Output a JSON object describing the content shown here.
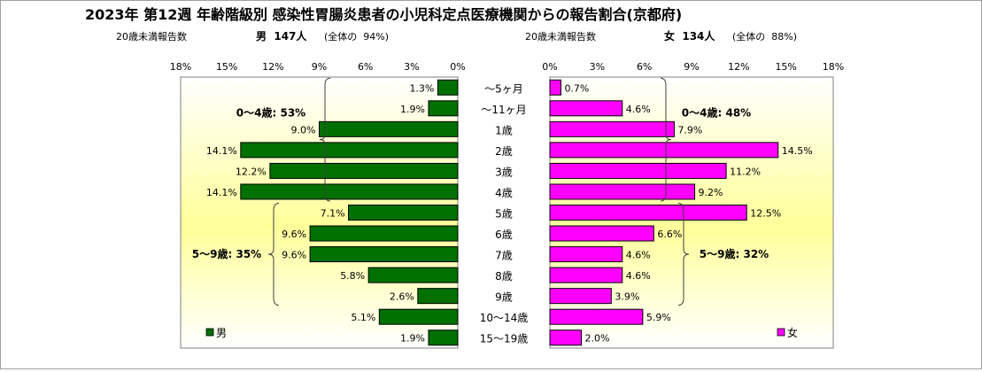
{
  "chart_data": {
    "type": "bar",
    "title": "2023年 第12週  年齢階級別 感染性胃腸炎患者の小児科定点医療機関からの報告割合(京都府)",
    "categories": [
      "～5ヶ月",
      "～11ヶ月",
      "1歳",
      "2歳",
      "3歳",
      "4歳",
      "5歳",
      "6歳",
      "7歳",
      "8歳",
      "9歳",
      "10～14歳",
      "15～19歳"
    ],
    "male": {
      "name": "男",
      "header_label": "20歳未満報告数",
      "header_count": "男  147人",
      "header_share": "(全体の  94%)",
      "values": [
        1.3,
        1.9,
        9.0,
        14.1,
        12.2,
        14.1,
        7.1,
        9.6,
        9.6,
        5.8,
        2.6,
        5.1,
        1.9
      ],
      "value_labels": [
        "1.3%",
        "1.9%",
        "9.0%",
        "14.1%",
        "12.2%",
        "14.1%",
        "7.1%",
        "9.6%",
        "9.6%",
        "5.8%",
        "2.6%",
        "5.1%",
        "1.9%"
      ],
      "xlim": [
        0,
        18
      ],
      "ticks": [
        "18%",
        "15%",
        "12%",
        "9%",
        "6%",
        "3%",
        "0%"
      ],
      "brackets": [
        {
          "label": "0～4歳: 53%",
          "from": 0,
          "to": 5
        },
        {
          "label": "5～9歳: 35%",
          "from": 6,
          "to": 10
        }
      ]
    },
    "female": {
      "name": "女",
      "header_label": "20歳未満報告数",
      "header_count": "女  134人",
      "header_share": "(全体の  88%)",
      "values": [
        0.7,
        4.6,
        7.9,
        14.5,
        11.2,
        9.2,
        12.5,
        6.6,
        4.6,
        4.6,
        3.9,
        5.9,
        2.0
      ],
      "value_labels": [
        "0.7%",
        "4.6%",
        "7.9%",
        "14.5%",
        "11.2%",
        "9.2%",
        "12.5%",
        "6.6%",
        "4.6%",
        "4.6%",
        "3.9%",
        "5.9%",
        "2.0%"
      ],
      "xlim": [
        0,
        18
      ],
      "ticks": [
        "0%",
        "3%",
        "6%",
        "9%",
        "12%",
        "15%",
        "18%"
      ],
      "brackets": [
        {
          "label": "0～4歳: 48%",
          "from": 0,
          "to": 5
        },
        {
          "label": "5～9歳: 32%",
          "from": 6,
          "to": 10
        }
      ]
    },
    "colors": {
      "male": "#007000",
      "female": "#ff00ff",
      "bar_edge": "#000000"
    }
  }
}
